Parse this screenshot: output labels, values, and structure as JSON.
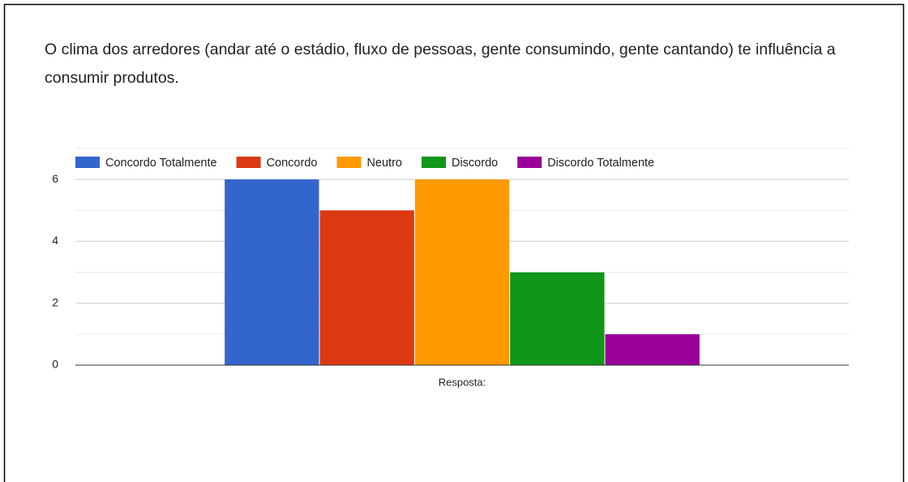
{
  "chart_data": {
    "type": "bar",
    "title": "O clima dos arredores (andar até o estádio, fluxo de pessoas, gente consumindo, gente cantando) te influência a consumir produtos.",
    "x_label": "Resposta:",
    "categories": [
      "Resposta:"
    ],
    "series": [
      {
        "name": "Concordo Totalmente",
        "color": "#3366cc",
        "values": [
          6
        ]
      },
      {
        "name": "Concordo",
        "color": "#dc3912",
        "values": [
          5
        ]
      },
      {
        "name": "Neutro",
        "color": "#ff9900",
        "values": [
          6
        ]
      },
      {
        "name": "Discordo",
        "color": "#109618",
        "values": [
          3
        ]
      },
      {
        "name": "Discordo Totalmente",
        "color": "#990099",
        "values": [
          1
        ]
      }
    ],
    "ylim": [
      0,
      7
    ],
    "yticks": [
      0,
      2,
      4,
      6
    ],
    "yticks_minor": [
      1,
      3,
      5,
      7
    ],
    "grid": true,
    "legend": "top-left"
  }
}
